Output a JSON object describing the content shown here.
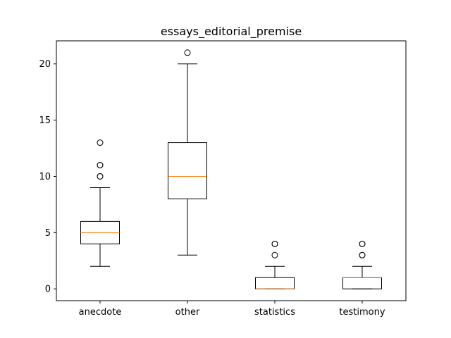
{
  "chart_data": {
    "type": "box",
    "title": "essays_editorial_premise",
    "xlabel": "",
    "ylabel": "",
    "ylim": [
      -1.05,
      22.05
    ],
    "yticks": [
      0,
      5,
      10,
      15,
      20
    ],
    "categories": [
      "anecdote",
      "other",
      "statistics",
      "testimony"
    ],
    "boxes": [
      {
        "label": "anecdote",
        "whislo": 2,
        "q1": 4,
        "median": 5,
        "q3": 6,
        "whishi": 9,
        "fliers": [
          10,
          10,
          11,
          11,
          13
        ]
      },
      {
        "label": "other",
        "whislo": 3,
        "q1": 8,
        "median": 10,
        "q3": 13,
        "whishi": 20,
        "fliers": [
          21
        ]
      },
      {
        "label": "statistics",
        "whislo": 0,
        "q1": 0,
        "median": 0,
        "q3": 1,
        "whishi": 2,
        "fliers": [
          3,
          4,
          4
        ]
      },
      {
        "label": "testimony",
        "whislo": 0,
        "q1": 0,
        "median": 1,
        "q3": 1,
        "whishi": 2,
        "fliers": [
          3,
          3,
          4,
          4
        ]
      }
    ],
    "grid": false,
    "colors": {
      "box": "#000000",
      "median": "#ff7f0e",
      "flier": "#000000",
      "background": "#ffffff"
    }
  }
}
